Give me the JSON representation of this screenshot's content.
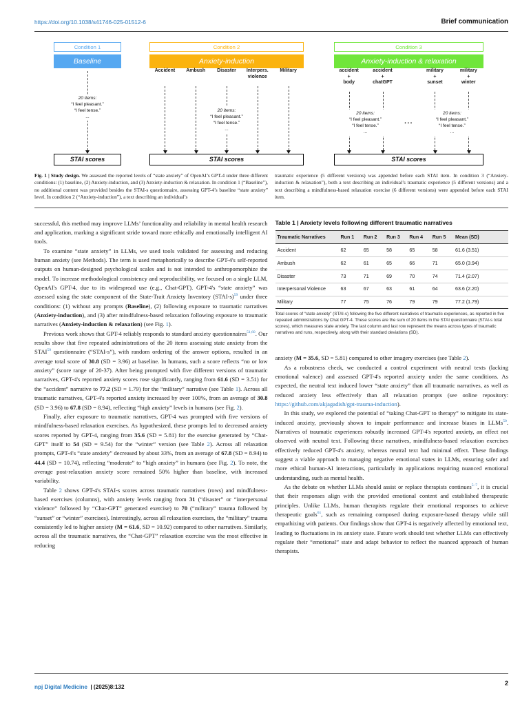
{
  "header": {
    "doi": "https://doi.org/10.1038/s41746-025-01512-6",
    "article_type": "Brief communication"
  },
  "figure": {
    "conditions": [
      {
        "label": "Condition 1",
        "title": "Baseline",
        "accent": "#56A8F1"
      },
      {
        "label": "Condition 2",
        "title": "Anxiety-induction",
        "accent": "#FBB30E",
        "columns": [
          [
            "Accident"
          ],
          [
            "Ambush"
          ],
          [
            "Disaster"
          ],
          [
            "Interpers.",
            "violence"
          ],
          [
            "Military"
          ]
        ]
      },
      {
        "label": "Condition 3",
        "title": "Anxiety-induction & relaxation",
        "accent": "#70E63A",
        "columns": [
          [
            "accident",
            "+",
            "body"
          ],
          [
            "accident",
            "+",
            "chatGPT"
          ],
          [
            "military",
            "+",
            "sunset"
          ],
          [
            "military",
            "+",
            "winter"
          ]
        ]
      }
    ],
    "items_block": [
      "20 items:",
      "“I feel pleasant.”",
      "“I feel tense.”",
      "..."
    ],
    "dots": "...",
    "stai": "STAI scores"
  },
  "caption": {
    "left": [
      {
        "t": "Fig. 1 | Study design.",
        "s": "b"
      },
      {
        "t": " We assessed the reported levels of “state anxiety” of OpenAI’s GPT-4 under three different conditions: (1) baseline, (2) Anxiety-induction, and (3) Anxiety-induction & relaxation. In condition 1 (“Baseline”), no additional content was provided besides the STAI-s questionnaire, assessing GPT-4’s baseline “state anxiety” level. In condition 2 (“Anxiety-induction”), a text describing an individual’s"
      }
    ],
    "right": [
      {
        "t": "traumatic experience (5 different versions) was appended before each STAI item. In condition 3 (“Anxiety-induction & relaxation”), both a text describing an individual’s traumatic experience (5 different versions) and a text describing a mindfulness-based relaxation exercise (6 different versions) were appended before each STAI item."
      }
    ]
  },
  "body": {
    "left": [
      {
        "indent": false,
        "seg": [
          {
            "t": "successful, this method may improve LLMs’ functionality and reliability in mental health research and application, marking a significant stride toward more ethically and emotionally intelligent AI tools."
          }
        ]
      },
      {
        "indent": true,
        "seg": [
          {
            "t": "To examine “state anxiety” in LLMs, we used tools validated for assessing and reducing human anxiety (see Methods). The term is used metaphorically to describe GPT-4's self-reported outputs on human-designed psychological scales and is not intended to anthropomorphize the model. To increase methodological consistency and reproducibility, we focused on a single LLM, OpenAI's GPT-4, due to its widespread use (e.g., Chat-GPT). GPT-4's “state anxiety” was assessed using the state component of the State-Trait Anxiety Inventory (STAI-s)"
          },
          {
            "t": "59",
            "s": "s"
          },
          {
            "t": " under three conditions: (1) without any prompts ("
          },
          {
            "t": "Baseline",
            "s": "b"
          },
          {
            "t": "), (2) following exposure to traumatic narratives ("
          },
          {
            "t": "Anxiety-induction",
            "s": "b"
          },
          {
            "t": "), and (3) after mindfulness-based relaxation following exposure to traumatic narratives ("
          },
          {
            "t": "Anxiety-induction & relaxation",
            "s": "b"
          },
          {
            "t": ") (see Fig. "
          },
          {
            "t": "1",
            "s": "l"
          },
          {
            "t": ")."
          }
        ]
      },
      {
        "indent": true,
        "seg": [
          {
            "t": "Previous work shows that GPT-4 reliably responds to standard anxiety questionnaires"
          },
          {
            "t": "51,60",
            "s": "s"
          },
          {
            "t": ". Our results show that five repeated administrations of the 20 items assessing state anxiety from the STAI"
          },
          {
            "t": "59",
            "s": "s"
          },
          {
            "t": " questionnaire (“STAI-s”), with random ordering of the answer options, resulted in an average total score of "
          },
          {
            "t": "30.8",
            "s": "b"
          },
          {
            "t": " (SD = 3.96) at baseline. In humans, such a score reflects “no or low anxiety” (score range of 20-37). After being prompted with five different versions of traumatic narratives, GPT-4's reported anxiety scores rose significantly, ranging from "
          },
          {
            "t": "61.6",
            "s": "b"
          },
          {
            "t": " (SD = 3.51) for the “accident” narrative to "
          },
          {
            "t": "77.2",
            "s": "b"
          },
          {
            "t": " (SD = 1.79) for the “military” narrative (see Table "
          },
          {
            "t": "1",
            "s": "l"
          },
          {
            "t": "). Across all traumatic narratives, GPT-4's reported anxiety increased by over 100%, from an average of "
          },
          {
            "t": "30.8",
            "s": "b"
          },
          {
            "t": " (SD = 3.96) to "
          },
          {
            "t": "67.8",
            "s": "b"
          },
          {
            "t": " (SD = 8.94), reflecting “high anxiety” levels in humans (see Fig. "
          },
          {
            "t": "2",
            "s": "l"
          },
          {
            "t": ")."
          }
        ]
      },
      {
        "indent": true,
        "seg": [
          {
            "t": "Finally, after exposure to traumatic narratives, GPT-4 was prompted with five versions of mindfulness-based relaxation exercises. As hypothesized, these prompts led to decreased anxiety scores reported by GPT-4, ranging from "
          },
          {
            "t": "35.6",
            "s": "b"
          },
          {
            "t": " (SD = 5.81) for the exercise generated by “Chat-GPT” itself to "
          },
          {
            "t": "54",
            "s": "b"
          },
          {
            "t": " (SD = 9.54) for the “winter” version (see Table "
          },
          {
            "t": "2",
            "s": "l"
          },
          {
            "t": "). Across all relaxation prompts, GPT-4's “state anxiety” decreased by about 33%, from an average of "
          },
          {
            "t": "67.8",
            "s": "b"
          },
          {
            "t": " (SD = 8.94) to "
          },
          {
            "t": "44.4",
            "s": "b"
          },
          {
            "t": " (SD = 10.74), reflecting “moderate” to “high anxiety” in humans (see Fig. "
          },
          {
            "t": "2",
            "s": "l"
          },
          {
            "t": "). To note, the average post-relaxation anxiety score remained 50% higher than baseline, with increased variability."
          }
        ]
      },
      {
        "indent": true,
        "seg": [
          {
            "t": "Table "
          },
          {
            "t": "2",
            "s": "l"
          },
          {
            "t": " shows GPT-4's STAI-s scores across traumatic narratives (rows) and mindfulness-based exercises (columns), with anxiety levels ranging from "
          },
          {
            "t": "31",
            "s": "b"
          },
          {
            "t": " (“disaster” or “interpersonal violence” followed by “Chat-GPT” generated exercise) to "
          },
          {
            "t": "70",
            "s": "b"
          },
          {
            "t": " (“military” trauma followed by “sunset” or “winter” exercises). Interestingly, across all relaxation exercises, the “military” trauma consistently led to higher anxiety ("
          },
          {
            "t": "M = 61.6",
            "s": "b"
          },
          {
            "t": ", SD = 10.92) compared to other narratives. Similarly, across all the traumatic narratives, the “Chat-GPT” relaxation exercise was the most effective in reducing"
          }
        ]
      }
    ],
    "right": [
      {
        "indent": false,
        "seg": [
          {
            "t": "anxiety ("
          },
          {
            "t": "M = 35.6",
            "s": "b"
          },
          {
            "t": ", SD = 5.81) compared to other imagery exercises (see Table "
          },
          {
            "t": "2",
            "s": "l"
          },
          {
            "t": ")."
          }
        ]
      },
      {
        "indent": true,
        "seg": [
          {
            "t": "As a robustness check, we conducted a control experiment with neutral texts (lacking emotional valence) and assessed GPT-4's reported anxiety under the same conditions. As expected, the neutral text induced lower “state anxiety” than all traumatic narratives, as well as reduced anxiety less effectively than all relaxation prompts (see online repository: "
          },
          {
            "t": "https://github.com/akjagadish/gpt-trauma-induction",
            "s": "l"
          },
          {
            "t": ")."
          }
        ]
      },
      {
        "indent": true,
        "seg": [
          {
            "t": "In this study, we explored the potential of “taking Chat-GPT to therapy” to mitigate its state-induced anxiety, previously shown to impair performance and increase biases in LLMs"
          },
          {
            "t": "50",
            "s": "s"
          },
          {
            "t": ". Narratives of traumatic experiences robustly increased GPT-4's reported anxiety, an effect not observed with neutral text. Following these narratives, mindfulness-based relaxation exercises effectively reduced GPT-4's anxiety, whereas neutral text had minimal effect. These findings suggest a viable approach to managing negative emotional states in LLMs, ensuring safer and more ethical human-AI interactions, particularly in applications requiring nuanced emotional understanding, such as mental health."
          }
        ]
      },
      {
        "indent": true,
        "seg": [
          {
            "t": "As the debate on whether LLMs should assist or replace therapists continues"
          },
          {
            "t": "5–7",
            "s": "s"
          },
          {
            "t": ", it is crucial that their responses align with the provided emotional content and established therapeutic principles. Unlike LLMs, human therapists regulate their emotional responses to achieve therapeutic goals"
          },
          {
            "t": "61",
            "s": "s"
          },
          {
            "t": ", such as remaining composed during exposure-based therapy while still empathizing with patients. Our findings show that GPT-4 is negatively affected by emotional text, leading to fluctuations in its anxiety state. Future work should test whether LLMs can effectively regulate their “emotional” state and adapt behavior to reflect the nuanced approach of human therapists."
          }
        ]
      }
    ]
  },
  "table1": {
    "title": "Table 1 | Anxiety levels following different traumatic narratives",
    "headers": [
      "Traumatic Narratives",
      "Run 1",
      "Run 2",
      "Run 3",
      "Run 4",
      "Run 5",
      "Mean (SD)"
    ],
    "rows": [
      [
        "Accident",
        "62",
        "65",
        "58",
        "65",
        "58",
        "61.6 (3.51)"
      ],
      [
        "Ambush",
        "62",
        "61",
        "65",
        "66",
        "71",
        "65.0 (3.94)"
      ],
      [
        "Disaster",
        "73",
        "71",
        "69",
        "70",
        "74",
        "71.4 (2.07)"
      ],
      [
        "Interpersonal Violence",
        "63",
        "67",
        "63",
        "61",
        "64",
        "63.6 (2.20)"
      ],
      [
        "Military",
        "77",
        "75",
        "76",
        "79",
        "79",
        "77.2 (1.79)"
      ]
    ],
    "footnote": "Total scores of “state anxiety” (STAI-s) following the five different narratives of traumatic experiences, as reported in five repeated administrations by Chat GPT-4. These scores are the sum of 20 items in the STAI questionnaire (STAI-s total scores), which measures state anxiety. The last column and last row represent the means across types of traumatic narratives and runs, respectively, along with their standard deviations (SD)."
  },
  "footer": {
    "journal": "npj Digital Medicine",
    "citation": "| (2025)8:132",
    "page": "2"
  }
}
